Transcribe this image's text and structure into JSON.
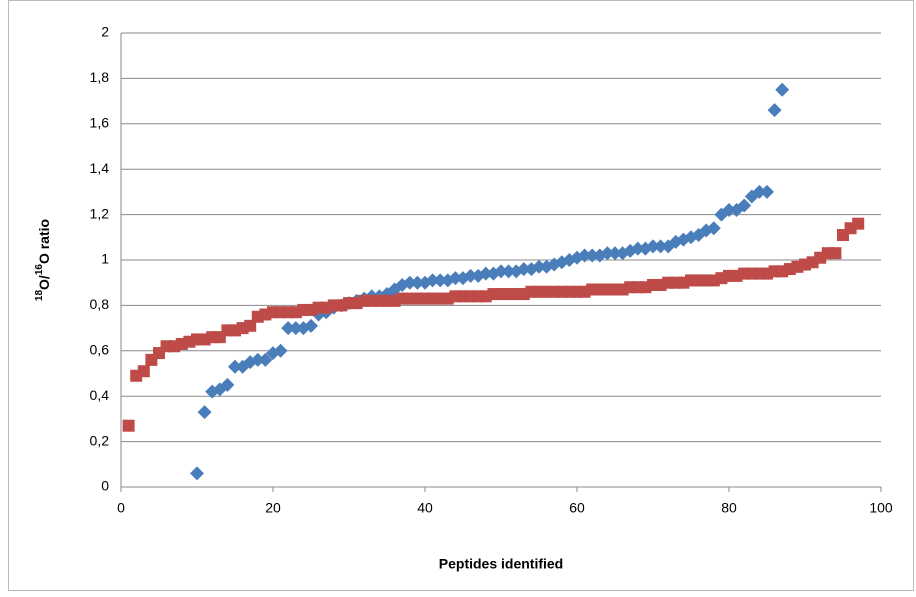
{
  "chart_data": {
    "type": "scatter",
    "x_label": "Peptides identified",
    "y_label": [
      "18",
      "O/",
      "16",
      "O ratio"
    ],
    "xlim": [
      0,
      100
    ],
    "xticks": [
      0,
      20,
      40,
      60,
      80,
      100
    ],
    "ylim": [
      0,
      2
    ],
    "yticks": [
      0,
      {
        "value": 0.2,
        "label": "0,2"
      },
      {
        "value": 0.4,
        "label": "0,4"
      },
      {
        "value": 0.6,
        "label": "0,6"
      },
      {
        "value": 0.8,
        "label": "0,8"
      },
      1,
      {
        "value": 1.2,
        "label": "1,2"
      },
      {
        "value": 1.4,
        "label": "1,4"
      },
      {
        "value": 1.6,
        "label": "1,6"
      },
      {
        "value": 1.8,
        "label": "1,8"
      },
      2
    ],
    "grid": true,
    "series": [
      {
        "color": "#4a7ebb",
        "marker": "diamond",
        "x": [
          10,
          11,
          12,
          13,
          14,
          15,
          16,
          17,
          18,
          19,
          20,
          21,
          22,
          23,
          24,
          25,
          26,
          27,
          28,
          29,
          30,
          31,
          32,
          33,
          34,
          35,
          36,
          37,
          38,
          39,
          40,
          41,
          42,
          43,
          44,
          45,
          46,
          47,
          48,
          49,
          50,
          51,
          52,
          53,
          54,
          55,
          56,
          57,
          58,
          59,
          60,
          61,
          62,
          63,
          64,
          65,
          66,
          67,
          68,
          69,
          70,
          71,
          72,
          73,
          74,
          75,
          76,
          77,
          78,
          79,
          80,
          81,
          82,
          83,
          84,
          85,
          86,
          87
        ],
        "values": [
          0.06,
          0.33,
          0.42,
          0.43,
          0.45,
          0.53,
          0.53,
          0.55,
          0.56,
          0.56,
          0.59,
          0.6,
          0.7,
          0.7,
          0.7,
          0.71,
          0.76,
          0.77,
          0.79,
          0.8,
          0.81,
          0.82,
          0.83,
          0.84,
          0.84,
          0.85,
          0.87,
          0.89,
          0.9,
          0.9,
          0.9,
          0.91,
          0.91,
          0.91,
          0.92,
          0.92,
          0.93,
          0.93,
          0.94,
          0.94,
          0.95,
          0.95,
          0.95,
          0.96,
          0.96,
          0.97,
          0.97,
          0.98,
          0.99,
          1.0,
          1.01,
          1.02,
          1.02,
          1.02,
          1.03,
          1.03,
          1.03,
          1.04,
          1.05,
          1.05,
          1.06,
          1.06,
          1.06,
          1.08,
          1.09,
          1.1,
          1.11,
          1.13,
          1.14,
          1.2,
          1.22,
          1.22,
          1.24,
          1.28,
          1.3,
          1.3,
          1.66,
          1.75
        ]
      },
      {
        "color": "#be4b48",
        "marker": "square",
        "x": [
          1,
          2,
          3,
          4,
          5,
          6,
          7,
          8,
          9,
          10,
          11,
          12,
          13,
          14,
          15,
          16,
          17,
          18,
          19,
          20,
          21,
          22,
          23,
          24,
          25,
          26,
          27,
          28,
          29,
          30,
          31,
          32,
          33,
          34,
          35,
          36,
          37,
          38,
          39,
          40,
          41,
          42,
          43,
          44,
          45,
          46,
          47,
          48,
          49,
          50,
          51,
          52,
          53,
          54,
          55,
          56,
          57,
          58,
          59,
          60,
          61,
          62,
          63,
          64,
          65,
          66,
          67,
          68,
          69,
          70,
          71,
          72,
          73,
          74,
          75,
          76,
          77,
          78,
          79,
          80,
          81,
          82,
          83,
          84,
          85,
          86,
          87,
          88,
          89,
          90,
          91,
          92,
          93,
          94,
          95,
          96,
          97
        ],
        "values": [
          0.27,
          0.49,
          0.51,
          0.56,
          0.59,
          0.62,
          0.62,
          0.63,
          0.64,
          0.65,
          0.65,
          0.66,
          0.66,
          0.69,
          0.69,
          0.7,
          0.71,
          0.75,
          0.76,
          0.77,
          0.77,
          0.77,
          0.77,
          0.78,
          0.78,
          0.79,
          0.79,
          0.8,
          0.8,
          0.81,
          0.81,
          0.82,
          0.82,
          0.82,
          0.82,
          0.82,
          0.83,
          0.83,
          0.83,
          0.83,
          0.83,
          0.83,
          0.83,
          0.84,
          0.84,
          0.84,
          0.84,
          0.84,
          0.85,
          0.85,
          0.85,
          0.85,
          0.85,
          0.86,
          0.86,
          0.86,
          0.86,
          0.86,
          0.86,
          0.86,
          0.86,
          0.87,
          0.87,
          0.87,
          0.87,
          0.87,
          0.88,
          0.88,
          0.88,
          0.89,
          0.89,
          0.9,
          0.9,
          0.9,
          0.91,
          0.91,
          0.91,
          0.91,
          0.92,
          0.93,
          0.93,
          0.94,
          0.94,
          0.94,
          0.94,
          0.95,
          0.95,
          0.96,
          0.97,
          0.98,
          0.99,
          1.01,
          1.03,
          1.03,
          1.11,
          1.14,
          1.16
        ]
      }
    ]
  }
}
